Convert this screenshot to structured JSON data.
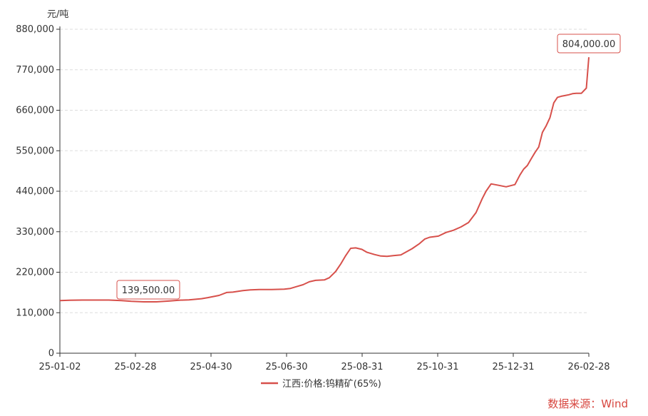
{
  "chart_data": {
    "type": "line",
    "ylabel": "元/吨",
    "ylim": [
      0,
      880000
    ],
    "yticks": [
      "0",
      "110,000",
      "220,000",
      "330,000",
      "440,000",
      "550,000",
      "660,000",
      "770,000",
      "880,000"
    ],
    "xticks": [
      "25-01-02",
      "25-02-28",
      "25-04-30",
      "25-06-30",
      "25-08-31",
      "25-10-31",
      "25-12-31",
      "26-02-28"
    ],
    "grid": "horizontal dashed",
    "legend_position": "bottom-center",
    "series": [
      {
        "name": "江西:价格:钨精矿(65%)",
        "color": "#d7504b",
        "x": [
          "2025-01-02",
          "2025-01-10",
          "2025-01-20",
          "2025-02-01",
          "2025-02-10",
          "2025-02-20",
          "2025-02-28",
          "2025-03-10",
          "2025-03-20",
          "2025-03-31",
          "2025-04-07",
          "2025-04-15",
          "2025-04-25",
          "2025-04-30",
          "2025-05-09",
          "2025-05-15",
          "2025-05-20",
          "2025-05-28",
          "2025-06-03",
          "2025-06-10",
          "2025-06-20",
          "2025-06-30",
          "2025-07-05",
          "2025-07-10",
          "2025-07-15",
          "2025-07-20",
          "2025-07-25",
          "2025-08-01",
          "2025-08-05",
          "2025-08-10",
          "2025-08-14",
          "2025-08-18",
          "2025-08-22",
          "2025-08-26",
          "2025-08-31",
          "2025-09-04",
          "2025-09-10",
          "2025-09-15",
          "2025-09-20",
          "2025-09-25",
          "2025-10-01",
          "2025-10-10",
          "2025-10-16",
          "2025-10-20",
          "2025-10-24",
          "2025-10-31",
          "2025-11-06",
          "2025-11-12",
          "2025-11-18",
          "2025-11-24",
          "2025-11-30",
          "2025-12-05",
          "2025-12-08",
          "2025-12-12",
          "2025-12-18",
          "2025-12-24",
          "2025-12-31",
          "2026-01-04",
          "2026-01-07",
          "2026-01-10",
          "2026-01-13",
          "2026-01-16",
          "2026-01-19",
          "2026-01-22",
          "2026-01-25",
          "2026-01-28",
          "2026-01-31",
          "2026-02-03",
          "2026-02-06",
          "2026-02-09",
          "2026-02-12",
          "2026-02-15",
          "2026-02-18",
          "2026-02-22",
          "2026-02-26",
          "2026-02-28"
        ],
        "values": [
          143000,
          144000,
          144500,
          144500,
          144500,
          143000,
          141000,
          139500,
          139500,
          142000,
          144000,
          145000,
          148000,
          151000,
          157000,
          165000,
          166000,
          170000,
          172000,
          173000,
          173000,
          174000,
          176000,
          181000,
          186000,
          194000,
          198000,
          199000,
          205000,
          222000,
          242000,
          265000,
          285000,
          286000,
          282000,
          274000,
          268000,
          264000,
          263000,
          265000,
          267000,
          284000,
          298000,
          310000,
          315000,
          318000,
          328000,
          334000,
          343000,
          355000,
          382000,
          420000,
          440000,
          460000,
          456000,
          452000,
          458000,
          484000,
          500000,
          510000,
          528000,
          545000,
          560000,
          600000,
          618000,
          640000,
          680000,
          695000,
          698000,
          700000,
          702000,
          705000,
          706000,
          706000,
          720000,
          804000
        ]
      }
    ],
    "annotations": [
      {
        "text": "139,500.00",
        "date": "2025-03-10",
        "value": 139500
      },
      {
        "text": "804,000.00",
        "date": "2026-02-28",
        "value": 804000
      }
    ]
  },
  "source": "数据来源：Wind"
}
